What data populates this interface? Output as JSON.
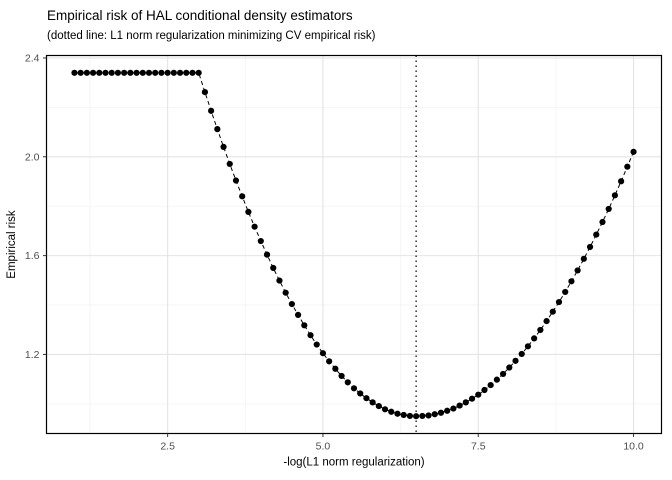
{
  "page": {
    "background_color": "#ffffff"
  },
  "chart_data": {
    "type": "scatter",
    "title": "Empirical risk of HAL conditional density estimators",
    "subtitle": "(dotted line: L1 norm regularization minimizing CV empirical risk)",
    "xlabel": "-log(L1 norm regularization)",
    "ylabel": "Empirical risk",
    "xlim": [
      0.55,
      10.45
    ],
    "ylim": [
      0.88,
      2.41
    ],
    "x_ticks": {
      "values": [
        2.5,
        5.0,
        7.5,
        10.0
      ],
      "labels": [
        "2.5",
        "5.0",
        "7.5",
        "10.0"
      ]
    },
    "y_ticks": {
      "values": [
        1.2,
        1.6,
        2.0,
        2.4
      ],
      "labels": [
        "1.2",
        "1.6",
        "2.0",
        "2.4"
      ]
    },
    "x_minor": [
      1.25,
      3.75,
      6.25,
      8.75
    ],
    "y_minor": [
      1.0,
      1.4,
      1.8,
      2.2
    ],
    "vline_x": 6.5,
    "legend": "none",
    "grid": "on",
    "series": [
      {
        "name": "empirical-risk",
        "x": [
          1,
          1.1,
          1.2,
          1.3,
          1.4,
          1.5,
          1.6,
          1.7,
          1.8,
          1.9,
          2,
          2.1,
          2.2,
          2.3,
          2.4,
          2.5,
          2.6,
          2.7,
          2.8,
          2.9,
          3,
          3.1,
          3.2,
          3.3,
          3.4,
          3.5,
          3.6,
          3.7,
          3.8,
          3.9,
          4,
          4.1,
          4.2,
          4.3,
          4.4,
          4.5,
          4.6,
          4.7,
          4.8,
          4.9,
          5,
          5.1,
          5.2,
          5.3,
          5.4,
          5.5,
          5.6,
          5.7,
          5.8,
          5.9,
          6,
          6.1,
          6.2,
          6.3,
          6.4,
          6.5,
          6.6,
          6.7,
          6.8,
          6.9,
          7,
          7.1,
          7.2,
          7.3,
          7.4,
          7.5,
          7.6,
          7.7,
          7.8,
          7.9,
          8,
          8.1,
          8.2,
          8.3,
          8.4,
          8.5,
          8.6,
          8.7,
          8.8,
          8.9,
          9,
          9.1,
          9.2,
          9.3,
          9.4,
          9.5,
          9.6,
          9.7,
          9.8,
          9.9,
          10
        ],
        "y": [
          2.34,
          2.34,
          2.34,
          2.34,
          2.34,
          2.34,
          2.34,
          2.34,
          2.34,
          2.34,
          2.34,
          2.34,
          2.34,
          2.34,
          2.34,
          2.34,
          2.34,
          2.34,
          2.34,
          2.34,
          2.34,
          2.262,
          2.186,
          2.112,
          2.04,
          1.971,
          1.904,
          1.84,
          1.777,
          1.717,
          1.659,
          1.604,
          1.55,
          1.499,
          1.45,
          1.404,
          1.36,
          1.318,
          1.278,
          1.24,
          1.205,
          1.172,
          1.142,
          1.113,
          1.087,
          1.063,
          1.042,
          1.023,
          1.006,
          0.991,
          0.978,
          0.968,
          0.96,
          0.955,
          0.951,
          0.95,
          0.951,
          0.953,
          0.958,
          0.964,
          0.972,
          0.981,
          0.993,
          1.006,
          1.021,
          1.037,
          1.056,
          1.076,
          1.098,
          1.121,
          1.147,
          1.174,
          1.202,
          1.233,
          1.265,
          1.299,
          1.335,
          1.373,
          1.412,
          1.453,
          1.496,
          1.54,
          1.587,
          1.635,
          1.685,
          1.736,
          1.789,
          1.844,
          1.901,
          1.96,
          2.02
        ]
      }
    ],
    "style": {
      "point_color": "#000000",
      "line_color": "#000000",
      "vline_color": "#000000",
      "panel_background": "#ffffff",
      "panel_border": "#000000",
      "grid_major_color": "#e4e4e4",
      "grid_minor_color": "#f2f2f2",
      "tick_color": "#333333",
      "tick_label_color": "#4d4d4d",
      "axis_title_color": "#000000"
    }
  }
}
